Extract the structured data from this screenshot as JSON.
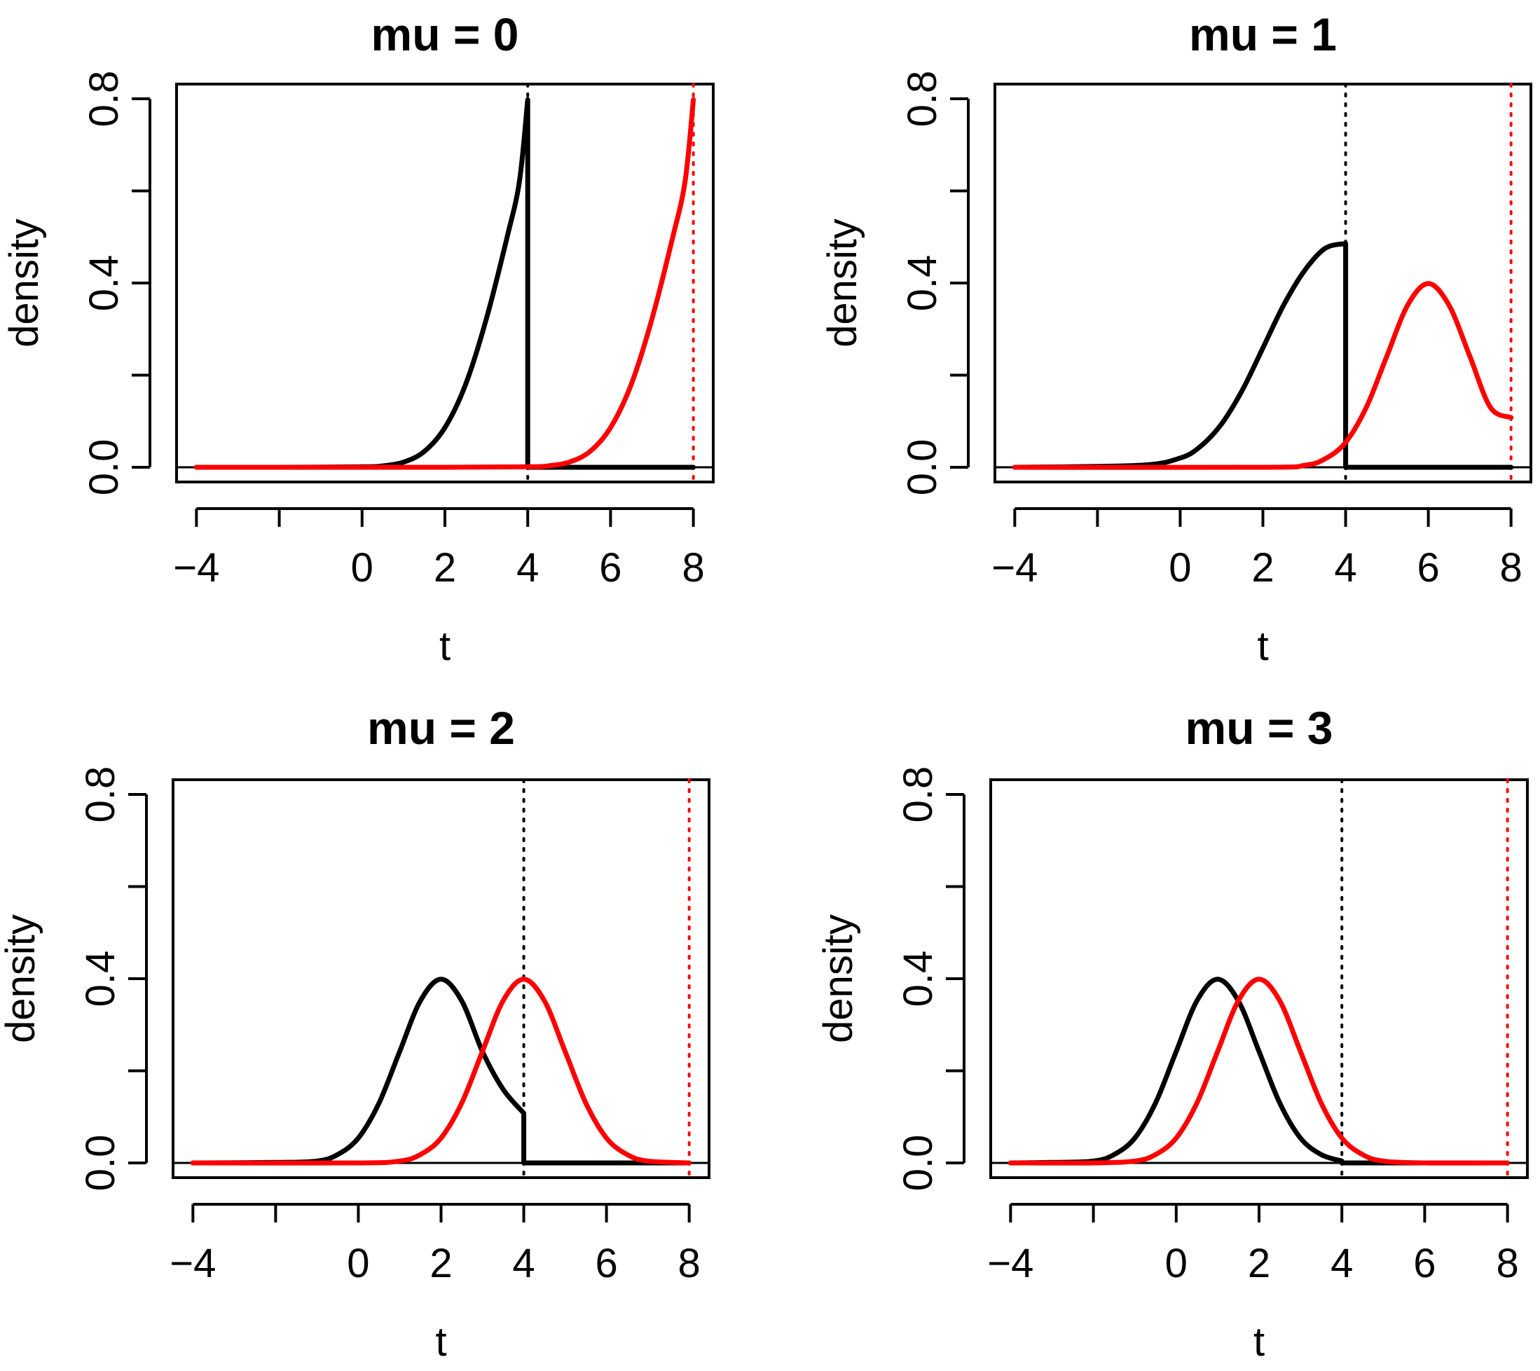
{
  "chart_data": [
    {
      "type": "line",
      "title": "mu =  0",
      "xlabel": "t",
      "ylabel": "density",
      "xlim": [
        -4,
        8
      ],
      "ylim": [
        0,
        0.8
      ],
      "xticks": [
        -4,
        -2,
        0,
        2,
        4,
        6,
        8
      ],
      "xtick_labels": [
        "−4",
        "",
        "0",
        "2",
        "4",
        "6",
        "8"
      ],
      "yticks": [
        0,
        0.2,
        0.4,
        0.6,
        0.8
      ],
      "ytick_labels": [
        "0.0",
        "",
        "0.4",
        "",
        "0.8"
      ],
      "vlines": [
        {
          "x": 4,
          "color": "#000000",
          "style": "dotted"
        },
        {
          "x": 8,
          "color": "#ff0000",
          "style": "dotted"
        }
      ],
      "series": [
        {
          "name": "black",
          "color": "#000000",
          "x": [
            -4,
            -2,
            0,
            0.5,
            1,
            1.5,
            2,
            2.5,
            3,
            3.5,
            3.8,
            4,
            4,
            8
          ],
          "y": [
            0,
            0,
            0.001,
            0.003,
            0.011,
            0.034,
            0.086,
            0.18,
            0.322,
            0.499,
            0.621,
            0.798,
            0,
            0
          ]
        },
        {
          "name": "red",
          "color": "#ff0000",
          "x": [
            -4,
            2,
            4,
            4.5,
            5,
            5.5,
            6,
            6.5,
            7,
            7.5,
            7.8,
            8
          ],
          "y": [
            0,
            0,
            0.001,
            0.003,
            0.011,
            0.034,
            0.086,
            0.18,
            0.322,
            0.499,
            0.621,
            0.798
          ]
        }
      ]
    },
    {
      "type": "line",
      "title": "mu =  1",
      "xlabel": "t",
      "ylabel": "density",
      "xlim": [
        -4,
        8
      ],
      "ylim": [
        0,
        0.8
      ],
      "xticks": [
        -4,
        -2,
        0,
        2,
        4,
        6,
        8
      ],
      "xtick_labels": [
        "−4",
        "",
        "0",
        "2",
        "4",
        "6",
        "8"
      ],
      "yticks": [
        0,
        0.2,
        0.4,
        0.6,
        0.8
      ],
      "ytick_labels": [
        "0.0",
        "",
        "0.4",
        "",
        "0.8"
      ],
      "vlines": [
        {
          "x": 4,
          "color": "#000000",
          "style": "dotted"
        },
        {
          "x": 8,
          "color": "#ff0000",
          "style": "dotted"
        }
      ],
      "series": [
        {
          "name": "black",
          "color": "#000000",
          "x": [
            -4,
            -1,
            0,
            0.5,
            1,
            1.5,
            2,
            2.5,
            3,
            3.5,
            4,
            4,
            8
          ],
          "y": [
            0,
            0.004,
            0.02,
            0.046,
            0.094,
            0.167,
            0.259,
            0.352,
            0.426,
            0.475,
            0.486,
            0,
            0
          ]
        },
        {
          "name": "red",
          "color": "#ff0000",
          "x": [
            -4,
            2,
            3,
            3.5,
            4,
            4.5,
            5,
            5.5,
            6,
            6.5,
            7,
            7.5,
            8
          ],
          "y": [
            0,
            0,
            0.004,
            0.018,
            0.054,
            0.13,
            0.242,
            0.352,
            0.399,
            0.352,
            0.242,
            0.13,
            0.108
          ]
        }
      ]
    },
    {
      "type": "line",
      "title": "mu =  2",
      "xlabel": "t",
      "ylabel": "density",
      "xlim": [
        -4,
        8
      ],
      "ylim": [
        0,
        0.8
      ],
      "xticks": [
        -4,
        -2,
        0,
        2,
        4,
        6,
        8
      ],
      "xtick_labels": [
        "−4",
        "",
        "0",
        "2",
        "4",
        "6",
        "8"
      ],
      "yticks": [
        0,
        0.2,
        0.4,
        0.6,
        0.8
      ],
      "ytick_labels": [
        "0.0",
        "",
        "0.4",
        "",
        "0.8"
      ],
      "vlines": [
        {
          "x": 4,
          "color": "#000000",
          "style": "dotted"
        },
        {
          "x": 8,
          "color": "#ff0000",
          "style": "dotted"
        }
      ],
      "series": [
        {
          "name": "black",
          "color": "#000000",
          "x": [
            -4,
            -2,
            -1,
            -0.5,
            0,
            0.5,
            1,
            1.5,
            2,
            2.5,
            3,
            3.5,
            4,
            4,
            8
          ],
          "y": [
            0,
            0.001,
            0.004,
            0.018,
            0.054,
            0.13,
            0.242,
            0.352,
            0.399,
            0.352,
            0.242,
            0.16,
            0.108,
            0,
            0
          ]
        },
        {
          "name": "red",
          "color": "#ff0000",
          "x": [
            -4,
            0,
            1,
            1.5,
            2,
            2.5,
            3,
            3.5,
            4,
            4.5,
            5,
            5.5,
            6,
            6.5,
            7,
            8
          ],
          "y": [
            0,
            0,
            0.004,
            0.018,
            0.054,
            0.13,
            0.242,
            0.352,
            0.399,
            0.352,
            0.242,
            0.13,
            0.054,
            0.018,
            0.004,
            0
          ]
        }
      ]
    },
    {
      "type": "line",
      "title": "mu =  3",
      "xlabel": "t",
      "ylabel": "density",
      "xlim": [
        -4,
        8
      ],
      "ylim": [
        0,
        0.8
      ],
      "xticks": [
        -4,
        -2,
        0,
        2,
        4,
        6,
        8
      ],
      "xtick_labels": [
        "−4",
        "",
        "0",
        "2",
        "4",
        "6",
        "8"
      ],
      "yticks": [
        0,
        0.2,
        0.4,
        0.6,
        0.8
      ],
      "ytick_labels": [
        "0.0",
        "",
        "0.4",
        "",
        "0.8"
      ],
      "vlines": [
        {
          "x": 4,
          "color": "#000000",
          "style": "dotted"
        },
        {
          "x": 8,
          "color": "#ff0000",
          "style": "dotted"
        }
      ],
      "series": [
        {
          "name": "black",
          "color": "#000000",
          "x": [
            -4,
            -3,
            -2,
            -1.5,
            -1,
            -0.5,
            0,
            0.5,
            1,
            1.5,
            2,
            2.5,
            3,
            3.5,
            4,
            4,
            8
          ],
          "y": [
            0,
            0.001,
            0.004,
            0.018,
            0.054,
            0.13,
            0.242,
            0.352,
            0.399,
            0.352,
            0.242,
            0.13,
            0.054,
            0.018,
            0.004,
            0,
            0
          ]
        },
        {
          "name": "red",
          "color": "#ff0000",
          "x": [
            -4,
            -2,
            -1,
            -0.5,
            0,
            0.5,
            1,
            1.5,
            2,
            2.5,
            3,
            3.5,
            4,
            4.5,
            5,
            6,
            8
          ],
          "y": [
            0,
            0,
            0.004,
            0.018,
            0.054,
            0.13,
            0.242,
            0.352,
            0.399,
            0.352,
            0.242,
            0.13,
            0.054,
            0.018,
            0.004,
            0,
            0
          ]
        }
      ]
    }
  ]
}
